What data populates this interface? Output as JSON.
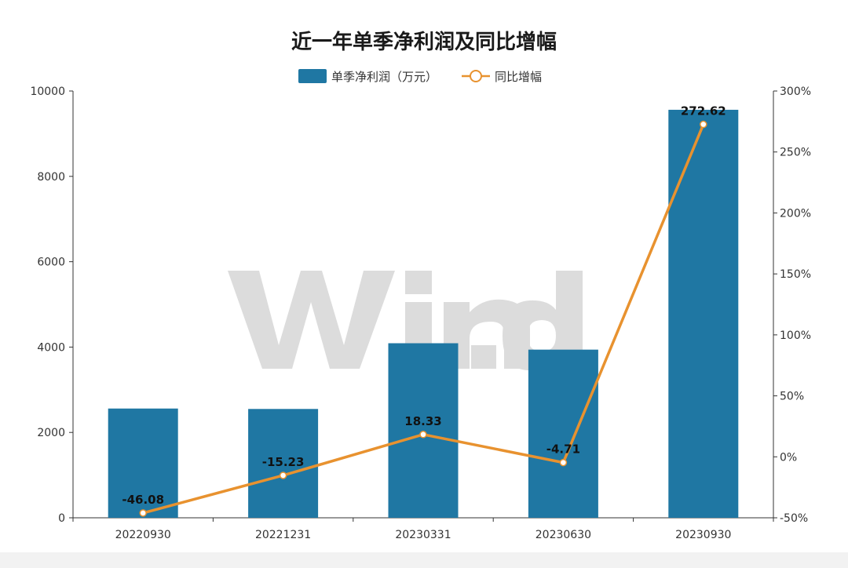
{
  "chart_data": {
    "type": "bar",
    "title": "近一年单季净利润及同比增幅",
    "categories": [
      "20220930",
      "20221231",
      "20230331",
      "20230630",
      "20230930"
    ],
    "series": [
      {
        "name": "单季净利润（万元）",
        "type": "bar",
        "axis": "left",
        "color": "#1f77a3",
        "values": [
          2560,
          2550,
          4090,
          3940,
          9560
        ]
      },
      {
        "name": "同比增幅",
        "type": "line",
        "axis": "right",
        "color": "#e8922f",
        "values": [
          -46.08,
          -15.23,
          18.33,
          -4.71,
          272.62
        ],
        "labels": [
          "-46.08",
          "-15.23",
          "18.33",
          "-4.71",
          "272.62"
        ]
      }
    ],
    "y_left": {
      "range": [
        0,
        10000
      ],
      "ticks": [
        "0",
        "2000",
        "4000",
        "6000",
        "8000",
        "10000"
      ]
    },
    "y_right": {
      "range": [
        -50,
        300
      ],
      "ticks": [
        "-50%",
        "0%",
        "50%",
        "100%",
        "150%",
        "200%",
        "250%",
        "300%"
      ]
    },
    "legend_position": "top-center",
    "grid": false,
    "watermark": "Wind"
  }
}
